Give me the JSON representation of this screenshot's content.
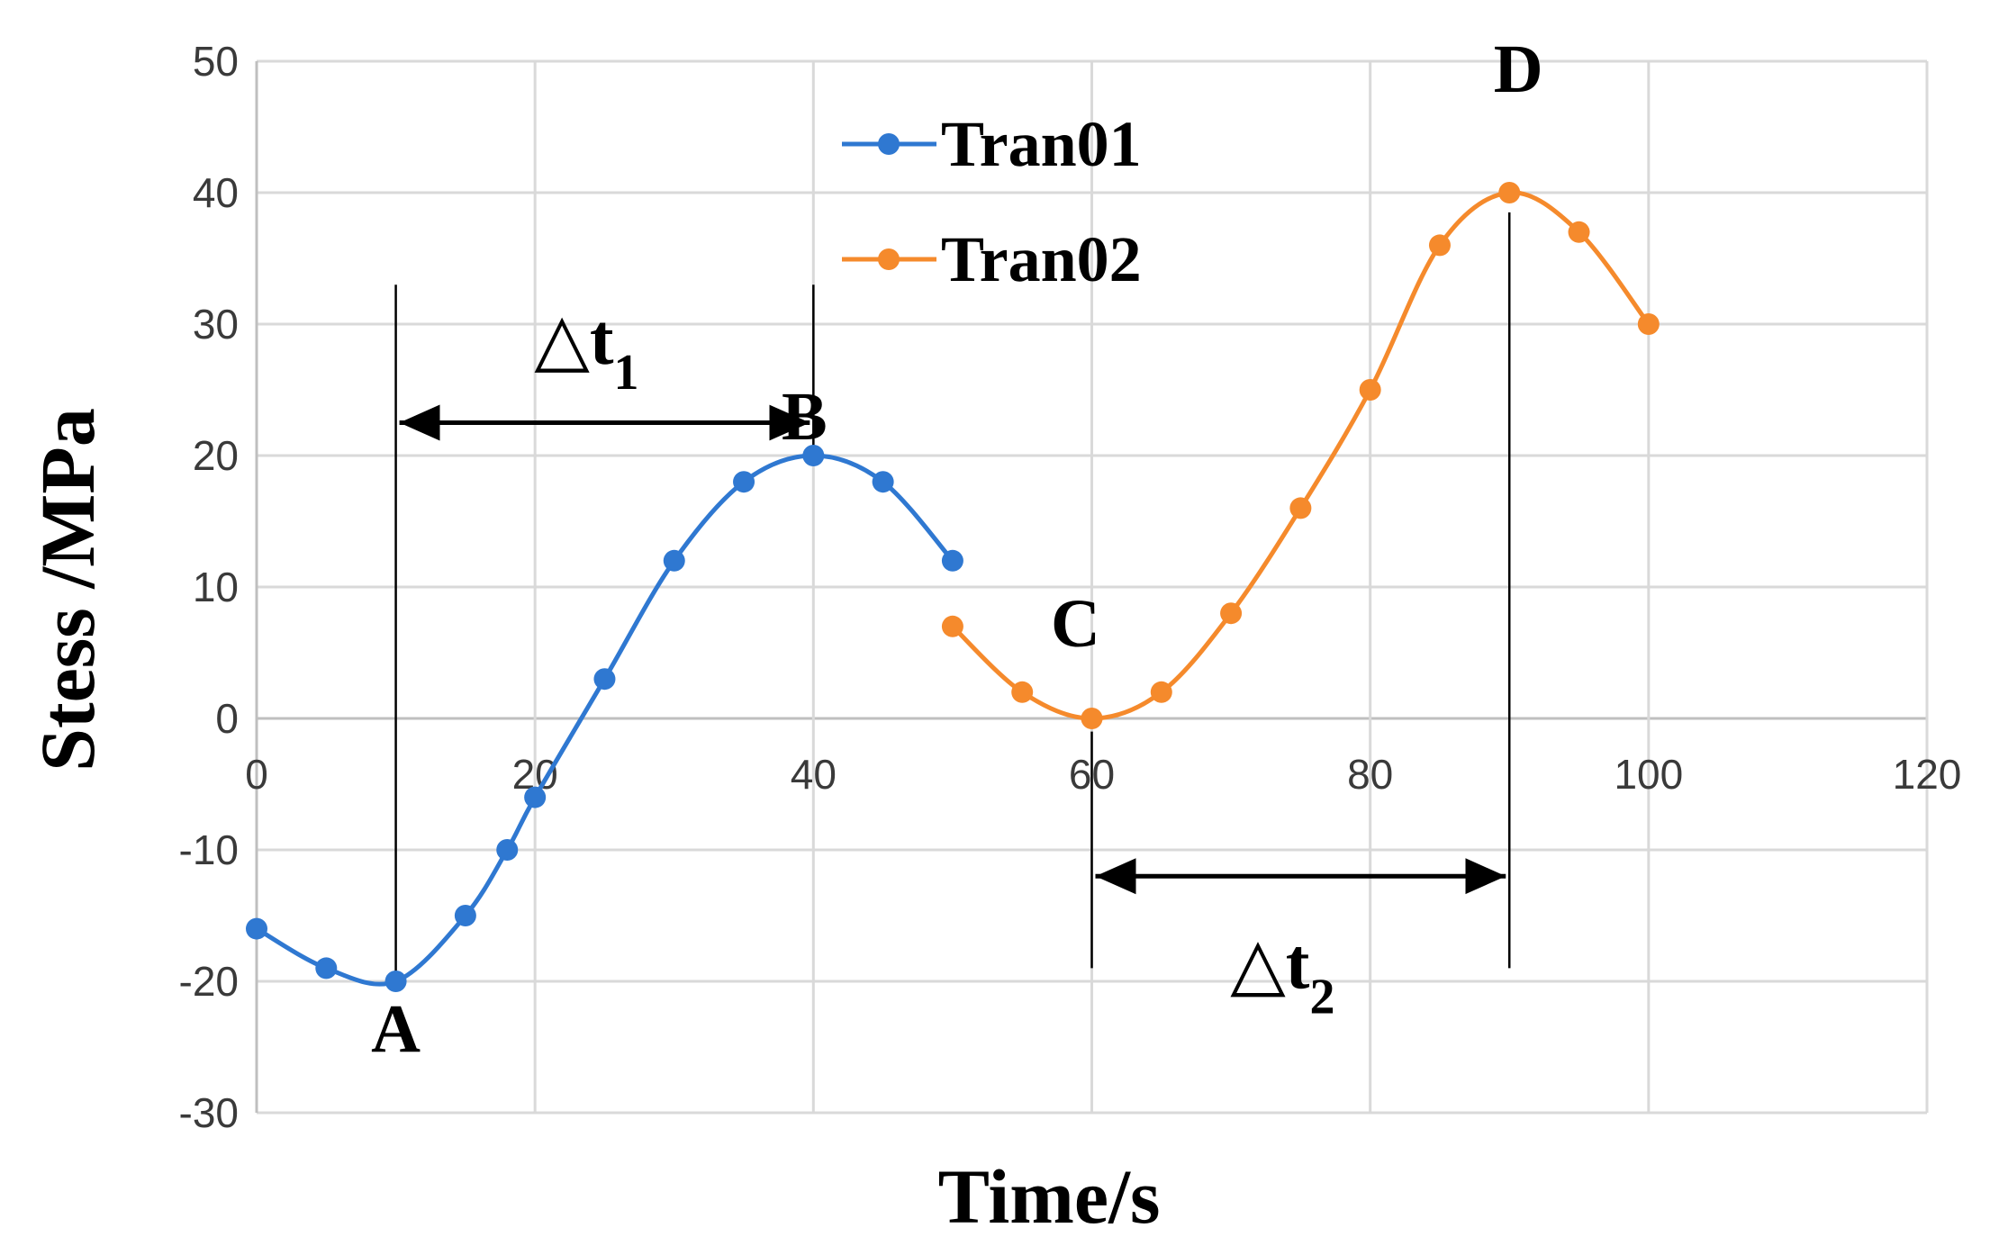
{
  "chart_data": {
    "type": "line",
    "xlabel": "Time/s",
    "ylabel": "Stess /MPa",
    "xlim": [
      0,
      120
    ],
    "ylim": [
      -30,
      50
    ],
    "xticks": [
      0,
      20,
      40,
      60,
      80,
      100,
      120
    ],
    "yticks": [
      -30,
      -20,
      -10,
      0,
      10,
      20,
      30,
      40,
      50
    ],
    "xtick_labels": [
      "0",
      "20",
      "40",
      "60",
      "80",
      "100",
      "120"
    ],
    "ytick_labels": [
      "-30",
      "-20",
      "-10",
      "0",
      "10",
      "20",
      "30",
      "40",
      "50"
    ],
    "grid": true,
    "legend_position": "top-center",
    "series": [
      {
        "name": "Tran01",
        "color": "#2f78d1",
        "x": [
          0,
          5,
          10,
          15,
          18,
          20,
          25,
          30,
          35,
          40,
          45,
          50
        ],
        "y": [
          -16,
          -19,
          -20,
          -15,
          -10,
          -6,
          3,
          12,
          18,
          20,
          18,
          12
        ]
      },
      {
        "name": "Tran02",
        "color": "#f58a2c",
        "x": [
          50,
          55,
          60,
          65,
          70,
          75,
          80,
          85,
          90,
          95,
          100
        ],
        "y": [
          7,
          2,
          0,
          2,
          8,
          16,
          25,
          36,
          40,
          37,
          30
        ]
      }
    ],
    "annotations": {
      "points": [
        {
          "label": "A",
          "x": 10,
          "y": -20
        },
        {
          "label": "B",
          "x": 40,
          "y": 20
        },
        {
          "label": "C",
          "x": 60,
          "y": 0
        },
        {
          "label": "D",
          "x": 90,
          "y": 40
        }
      ],
      "intervals": [
        {
          "label": "△t",
          "subscript": "1",
          "from": 10,
          "to": 40
        },
        {
          "label": "△t",
          "subscript": "2",
          "from": 60,
          "to": 90
        }
      ]
    }
  }
}
